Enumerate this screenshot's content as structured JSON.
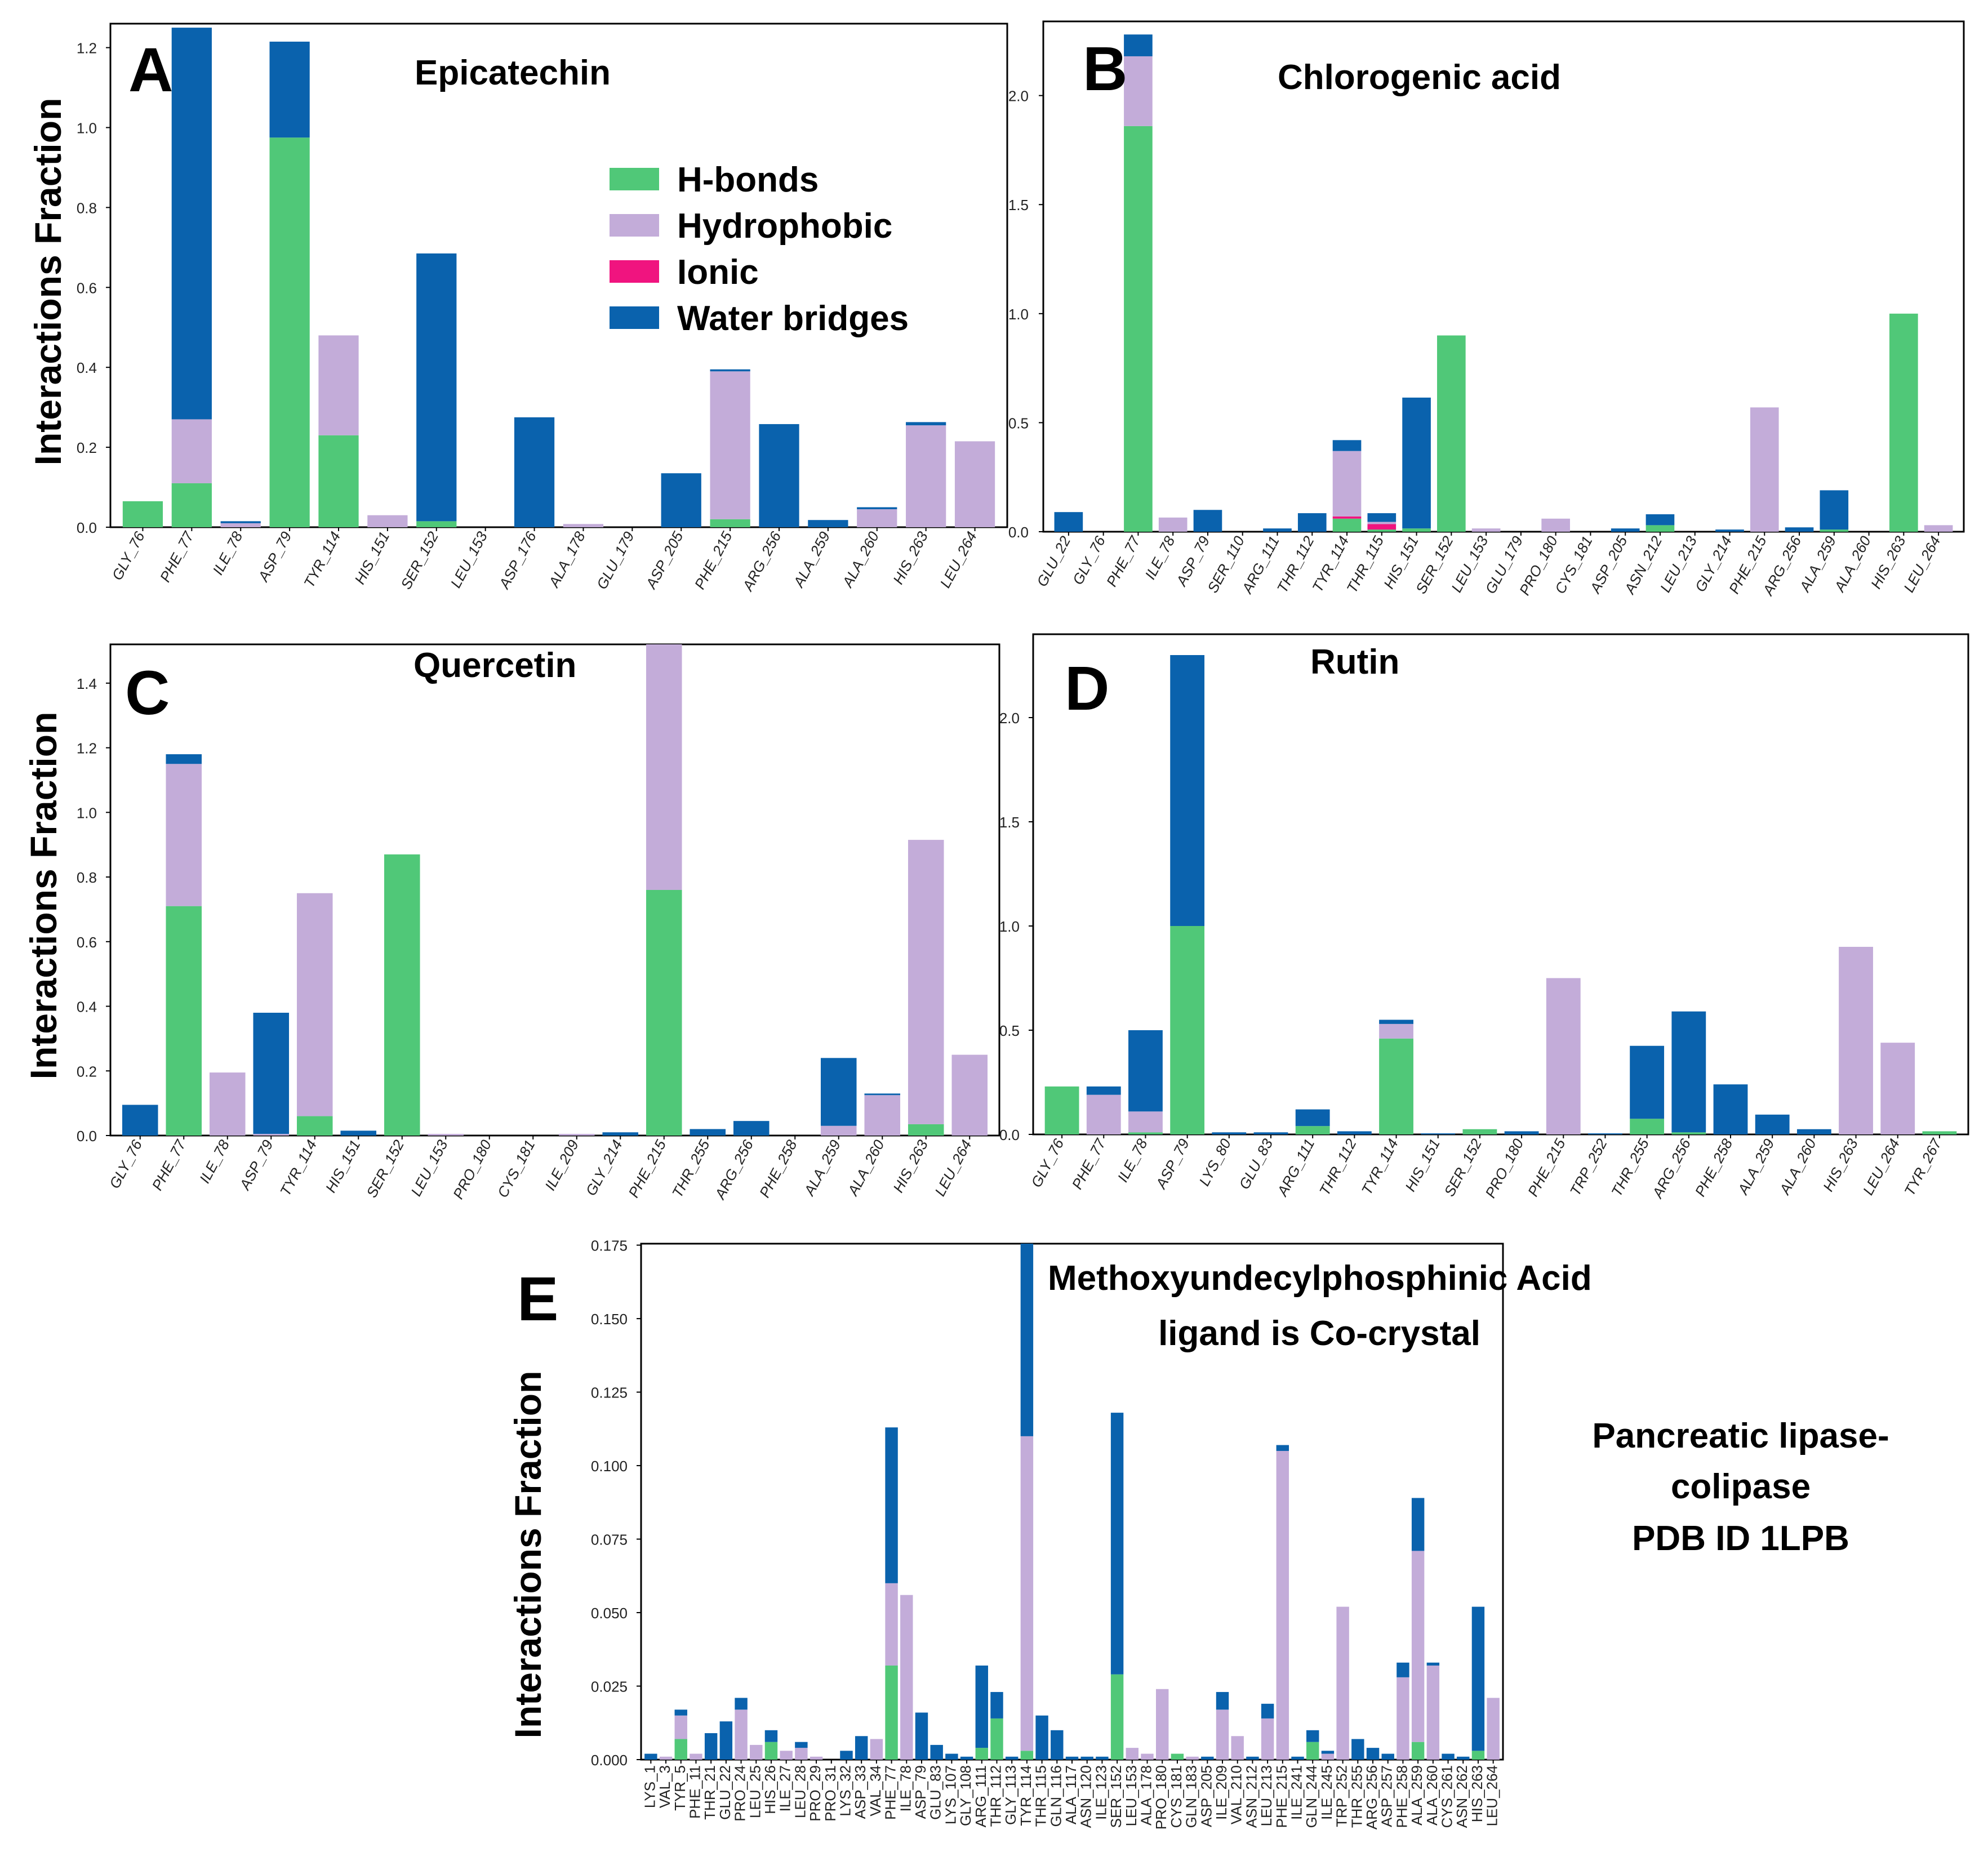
{
  "colors": {
    "hbonds": "#50c878",
    "hydrophobic": "#c3acd9",
    "ionic": "#f0147f",
    "water": "#0a62ad",
    "axis": "#000000"
  },
  "legend": {
    "items": [
      {
        "label": "H-bonds",
        "color": "#50c878"
      },
      {
        "label": "Hydrophobic",
        "color": "#c3acd9"
      },
      {
        "label": "Ionic",
        "color": "#f0147f"
      },
      {
        "label": "Water bridges",
        "color": "#0a62ad"
      }
    ]
  },
  "side_text": {
    "line1": "Pancreatic lipase-",
    "line2": "colipase",
    "line3": "PDB ID  1LPB"
  },
  "chart_data": [
    {
      "id": "A",
      "panel_label": "A",
      "type": "bar",
      "stacked": true,
      "title": "Epicatechin",
      "ylabel": "Interactions Fraction",
      "ylim": [
        0,
        1.26
      ],
      "yticks": [
        "0.0",
        "0.2",
        "0.4",
        "0.6",
        "0.8",
        "1.0",
        "1.2"
      ],
      "categories": [
        "GLY_76",
        "PHE_77",
        "ILE_78",
        "ASP_79",
        "TYR_114",
        "HIS_151",
        "SER_152",
        "LEU_153",
        "ASP_176",
        "ALA_178",
        "GLU_179",
        "ASP_205",
        "PHE_215",
        "ARG_256",
        "ALA_259",
        "ALA_260",
        "HIS_263",
        "LEU_264"
      ],
      "series": [
        {
          "name": "H-bonds",
          "values": [
            0.065,
            0.11,
            0,
            0.975,
            0.23,
            0,
            0.015,
            0,
            0,
            0,
            0,
            0,
            0.02,
            0,
            0,
            0,
            0,
            0
          ]
        },
        {
          "name": "Hydrophobic",
          "values": [
            0,
            0.16,
            0.01,
            0,
            0.25,
            0.03,
            0,
            0,
            0,
            0.008,
            0,
            0,
            0.37,
            0,
            0,
            0.045,
            0.255,
            0.215
          ]
        },
        {
          "name": "Ionic",
          "values": [
            0,
            0,
            0,
            0,
            0,
            0,
            0,
            0,
            0,
            0,
            0,
            0,
            0,
            0,
            0,
            0,
            0,
            0
          ]
        },
        {
          "name": "Water bridges",
          "values": [
            0,
            0.98,
            0.005,
            0.24,
            0,
            0,
            0.67,
            0,
            0.275,
            0,
            0,
            0.135,
            0.005,
            0.258,
            0.018,
            0.005,
            0.008,
            0
          ]
        }
      ]
    },
    {
      "id": "B",
      "panel_label": "B",
      "type": "bar",
      "stacked": true,
      "title": "Chlorogenic acid",
      "ylabel": "",
      "ylim": [
        0,
        2.34
      ],
      "yticks": [
        "0.0",
        "0.5",
        "1.0",
        "1.5",
        "2.0"
      ],
      "categories": [
        "GLU_22",
        "GLY_76",
        "PHE_77",
        "ILE_78",
        "ASP_79",
        "SER_110",
        "ARG_111",
        "THR_112",
        "TYR_114",
        "THR_115",
        "HIS_151",
        "SER_152",
        "LEU_153",
        "GLU_179",
        "PRO_180",
        "CYS_181",
        "ASP_205",
        "ASN_212",
        "LEU_213",
        "GLY_214",
        "PHE_215",
        "ARG_256",
        "ALA_259",
        "ALA_260",
        "HIS_263",
        "LEU_264"
      ],
      "series": [
        {
          "name": "H-bonds",
          "values": [
            0,
            0,
            1.86,
            0,
            0,
            0,
            0,
            0,
            0.06,
            0.01,
            0.015,
            0.9,
            0,
            0,
            0,
            0,
            0,
            0.03,
            0,
            0,
            0,
            0,
            0.01,
            0,
            1.0,
            0
          ]
        },
        {
          "name": "Hydrophobic",
          "values": [
            0,
            0,
            0.32,
            0.065,
            0,
            0,
            0,
            0,
            0.3,
            0.01,
            0,
            0,
            0.015,
            0,
            0.06,
            0,
            0,
            0,
            0,
            0,
            0.57,
            0,
            0,
            0,
            0,
            0.03
          ]
        },
        {
          "name": "Ionic",
          "values": [
            0,
            0,
            0,
            0,
            0,
            0,
            0,
            0,
            0.01,
            0.025,
            0,
            0,
            0,
            0,
            0,
            0,
            0,
            0,
            0,
            0,
            0,
            0,
            0,
            0,
            0,
            0
          ]
        },
        {
          "name": "Water bridges",
          "values": [
            0.09,
            0,
            0.1,
            0,
            0.1,
            0,
            0.015,
            0.085,
            0.05,
            0.04,
            0.6,
            0,
            0,
            0,
            0,
            0,
            0.015,
            0.05,
            0,
            0.01,
            0,
            0.02,
            0.18,
            0,
            0,
            0
          ]
        }
      ]
    },
    {
      "id": "C",
      "panel_label": "C",
      "type": "bar",
      "stacked": true,
      "title": "Quercetin",
      "ylabel": "Interactions Fraction",
      "ylim": [
        0,
        1.52
      ],
      "yticks": [
        "0.0",
        "0.2",
        "0.4",
        "0.6",
        "0.8",
        "1.0",
        "1.2",
        "1.4"
      ],
      "categories": [
        "GLY_76",
        "PHE_77",
        "ILE_78",
        "ASP_79",
        "TYR_114",
        "HIS_151",
        "SER_152",
        "LEU_153",
        "PRO_180",
        "CYS_181",
        "ILE_209",
        "GLY_214",
        "PHE_215",
        "THR_255",
        "ARG_256",
        "PHE_258",
        "ALA_259",
        "ALA_260",
        "HIS_263",
        "LEU_264"
      ],
      "series": [
        {
          "name": "H-bonds",
          "values": [
            0,
            0.71,
            0,
            0,
            0.06,
            0,
            0.87,
            0,
            0,
            0,
            0,
            0,
            0.76,
            0,
            0,
            0,
            0,
            0,
            0.035,
            0
          ]
        },
        {
          "name": "Hydrophobic",
          "values": [
            0,
            0.44,
            0.195,
            0.005,
            0.69,
            0,
            0,
            0.005,
            0,
            0,
            0.005,
            0,
            0.76,
            0,
            0,
            0,
            0.03,
            0.125,
            0.88,
            0.25
          ]
        },
        {
          "name": "Ionic",
          "values": [
            0,
            0,
            0,
            0,
            0,
            0,
            0,
            0,
            0,
            0,
            0,
            0,
            0,
            0,
            0,
            0,
            0,
            0,
            0,
            0
          ]
        },
        {
          "name": "Water bridges",
          "values": [
            0.095,
            0.03,
            0,
            0.375,
            0,
            0.015,
            0,
            0,
            0,
            0,
            0,
            0.01,
            0,
            0.02,
            0.045,
            0,
            0.21,
            0.005,
            0,
            0
          ]
        }
      ]
    },
    {
      "id": "D",
      "panel_label": "D",
      "type": "bar",
      "stacked": true,
      "title": "Rutin",
      "ylabel": "",
      "ylim": [
        0,
        2.4
      ],
      "yticks": [
        "0.0",
        "0.5",
        "1.0",
        "1.5",
        "2.0"
      ],
      "categories": [
        "GLY_76",
        "PHE_77",
        "ILE_78",
        "ASP_79",
        "LYS_80",
        "GLU_83",
        "ARG_111",
        "THR_112",
        "TYR_114",
        "HIS_151",
        "SER_152",
        "PRO_180",
        "PHE_215",
        "TRP_252",
        "THR_255",
        "ARG_256",
        "PHE_258",
        "ALA_259",
        "ALA_260",
        "HIS_263",
        "LEU_264",
        "TYR_267"
      ],
      "series": [
        {
          "name": "H-bonds",
          "values": [
            0.23,
            0,
            0.01,
            1.0,
            0,
            0,
            0.04,
            0,
            0.46,
            0,
            0.025,
            0,
            0,
            0,
            0.075,
            0.01,
            0,
            0,
            0,
            0,
            0,
            0.015
          ]
        },
        {
          "name": "Hydrophobic",
          "values": [
            0,
            0.19,
            0.1,
            0,
            0,
            0,
            0,
            0,
            0.07,
            0,
            0,
            0,
            0.75,
            0,
            0,
            0,
            0,
            0,
            0,
            0.9,
            0.44,
            0
          ]
        },
        {
          "name": "Ionic",
          "values": [
            0,
            0,
            0,
            0,
            0,
            0,
            0,
            0,
            0,
            0,
            0,
            0,
            0,
            0,
            0,
            0,
            0,
            0,
            0,
            0,
            0,
            0
          ]
        },
        {
          "name": "Water bridges",
          "values": [
            0,
            0.04,
            0.39,
            1.3,
            0.01,
            0.01,
            0.08,
            0.015,
            0.02,
            0.005,
            0,
            0.015,
            0,
            0.005,
            0.35,
            0.58,
            0.24,
            0.095,
            0.025,
            0,
            0,
            0
          ]
        }
      ]
    },
    {
      "id": "E",
      "panel_label": "E",
      "type": "bar",
      "stacked": true,
      "title": "Methoxyundecylphosphinic Acid",
      "subtitle": "ligand is Co-crystal",
      "ylabel": "Interactions Fraction",
      "ylim": [
        0,
        0.1755
      ],
      "yticks": [
        "0.000",
        "0.025",
        "0.050",
        "0.075",
        "0.100",
        "0.125",
        "0.150",
        "0.175"
      ],
      "categories": [
        "LYS_1",
        "VAL_3",
        "TYR_5",
        "PHE_11",
        "THR_21",
        "GLU_22",
        "PRO_24",
        "LEU_25",
        "HIS_26",
        "ILE_27",
        "LEU_28",
        "PRO_29",
        "PRO_31",
        "LYS_32",
        "ASP_33",
        "VAL_34",
        "PHE_77",
        "ILE_78",
        "ASP_79",
        "GLU_83",
        "LYS_107",
        "GLY_108",
        "ARG_111",
        "THR_112",
        "GLY_113",
        "TYR_114",
        "THR_115",
        "GLN_116",
        "ALA_117",
        "ASN_120",
        "ILE_123",
        "SER_152",
        "LEU_153",
        "ALA_178",
        "PRO_180",
        "CYS_181",
        "GLN_183",
        "ASP_205",
        "ILE_209",
        "VAL_210",
        "ASN_212",
        "LEU_213",
        "PHE_215",
        "ILE_241",
        "GLN_244",
        "ILE_245",
        "TRP_252",
        "THR_255",
        "ARG_256",
        "ASP_257",
        "PHE_258",
        "ALA_259",
        "ALA_260",
        "CYS_261",
        "ASN_262",
        "HIS_263",
        "LEU_264"
      ],
      "series": [
        {
          "name": "H-bonds",
          "values": [
            0,
            0,
            0.007,
            0,
            0,
            0,
            0,
            0,
            0.006,
            0,
            0,
            0,
            0,
            0,
            0,
            0,
            0.032,
            0,
            0,
            0,
            0,
            0,
            0.004,
            0.014,
            0,
            0.003,
            0,
            0,
            0,
            0,
            0,
            0.029,
            0,
            0,
            0,
            0.002,
            0,
            0,
            0,
            0,
            0,
            0,
            0,
            0,
            0.006,
            0,
            0,
            0,
            0,
            0,
            0,
            0.006,
            0,
            0,
            0,
            0.003,
            0
          ]
        },
        {
          "name": "Hydrophobic",
          "values": [
            0,
            0.001,
            0.008,
            0.002,
            0,
            0,
            0.017,
            0.005,
            0,
            0.003,
            0.004,
            0.001,
            0,
            0,
            0,
            0.007,
            0.028,
            0.056,
            0,
            0,
            0,
            0,
            0,
            0,
            0,
            0.107,
            0,
            0,
            0,
            0,
            0,
            0,
            0.004,
            0.002,
            0.024,
            0,
            0.001,
            0,
            0.017,
            0.008,
            0,
            0.014,
            0.105,
            0,
            0,
            0.002,
            0.052,
            0,
            0,
            0,
            0.028,
            0.065,
            0.032,
            0,
            0,
            0,
            0.021
          ]
        },
        {
          "name": "Ionic",
          "values": [
            0,
            0,
            0,
            0,
            0,
            0,
            0,
            0,
            0,
            0,
            0,
            0,
            0,
            0,
            0,
            0,
            0,
            0,
            0,
            0,
            0,
            0,
            0,
            0,
            0,
            0,
            0,
            0,
            0,
            0,
            0,
            0,
            0,
            0,
            0,
            0,
            0,
            0,
            0,
            0,
            0,
            0,
            0,
            0,
            0,
            0,
            0,
            0,
            0,
            0,
            0,
            0,
            0,
            0,
            0,
            0,
            0
          ]
        },
        {
          "name": "Water bridges",
          "values": [
            0.002,
            0,
            0.002,
            0,
            0.009,
            0.013,
            0.004,
            0,
            0.004,
            0,
            0.002,
            0,
            0,
            0.003,
            0.008,
            0,
            0.053,
            0,
            0.016,
            0.005,
            0.002,
            0.001,
            0.028,
            0.009,
            0.001,
            0.068,
            0.015,
            0.01,
            0.001,
            0.001,
            0.001,
            0.089,
            0,
            0,
            0,
            0,
            0,
            0.001,
            0.006,
            0,
            0.001,
            0.005,
            0.002,
            0.001,
            0.004,
            0.001,
            0,
            0.007,
            0.004,
            0.002,
            0.005,
            0.018,
            0.001,
            0.002,
            0.001,
            0.049,
            0
          ]
        }
      ]
    }
  ]
}
